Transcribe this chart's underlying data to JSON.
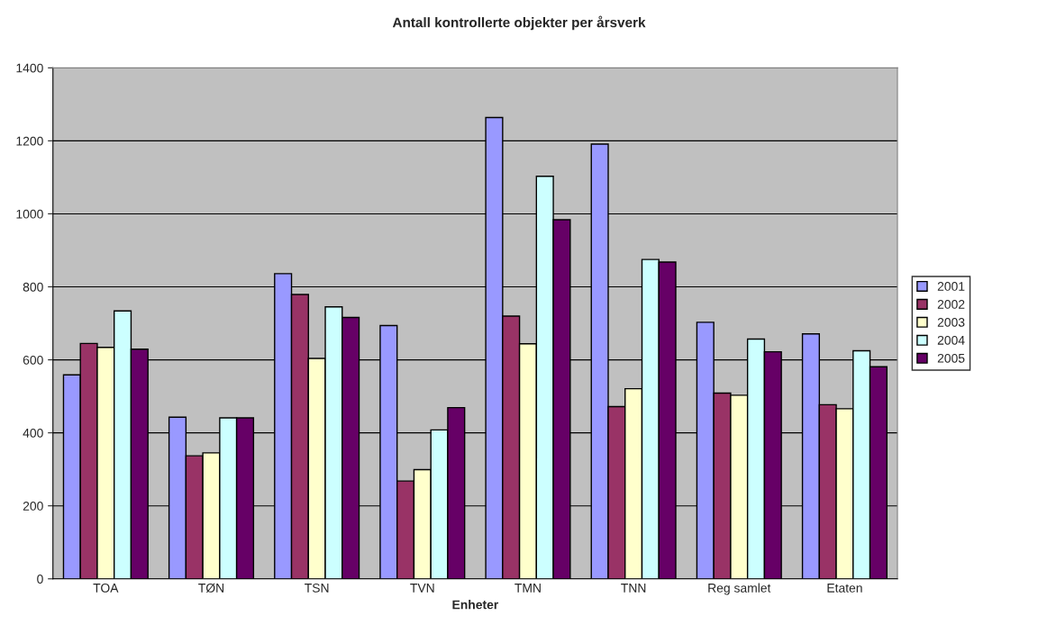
{
  "chart_data": {
    "type": "bar",
    "title": "Antall kontrollerte objekter per årsverk",
    "xlabel": "Enheter",
    "categories": [
      "TOA",
      "TØN",
      "TSN",
      "TVN",
      "TMN",
      "TNN",
      "Reg samlet",
      "Etaten"
    ],
    "series": [
      {
        "name": "2001",
        "color": "#9999ff",
        "values": [
          559,
          443,
          836,
          694,
          1264,
          1191,
          703,
          671
        ]
      },
      {
        "name": "2002",
        "color": "#993366",
        "values": [
          645,
          337,
          779,
          268,
          720,
          472,
          509,
          477
        ]
      },
      {
        "name": "2003",
        "color": "#ffffcc",
        "values": [
          634,
          345,
          604,
          299,
          644,
          521,
          503,
          466
        ]
      },
      {
        "name": "2004",
        "color": "#ccffff",
        "values": [
          734,
          441,
          745,
          408,
          1103,
          875,
          657,
          625
        ]
      },
      {
        "name": "2005",
        "color": "#660066",
        "values": [
          629,
          441,
          716,
          469,
          984,
          868,
          622,
          581
        ]
      }
    ],
    "ylim": [
      0,
      1400
    ],
    "yticks": [
      0,
      200,
      400,
      600,
      800,
      1000,
      1200,
      1400
    ],
    "grid": "y",
    "legend": "right"
  }
}
